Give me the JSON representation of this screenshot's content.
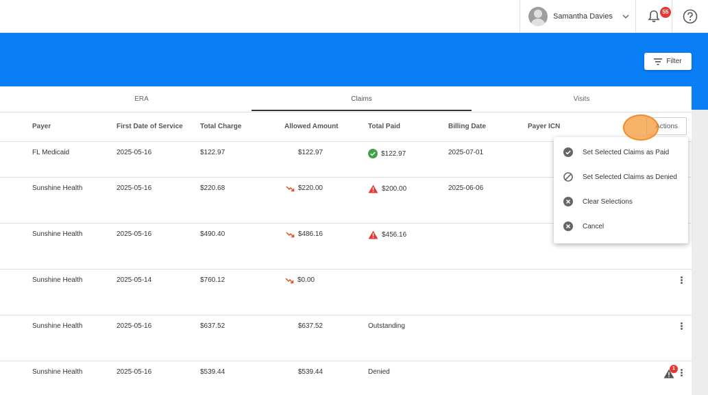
{
  "header": {
    "user_name": "Samantha Davies",
    "notification_count": "55"
  },
  "toolbar": {
    "filter_label": "Filter"
  },
  "tabs": [
    {
      "label": "ERA",
      "active": false
    },
    {
      "label": "Claims",
      "active": true
    },
    {
      "label": "Visits",
      "active": false
    }
  ],
  "table": {
    "columns": [
      "Payer",
      "First Date of Service",
      "Total Charge",
      "Allowed Amount",
      "Total Paid",
      "Billing Date",
      "Payer ICN"
    ],
    "actions_label": "Actions",
    "rows": [
      {
        "payer": "FL Medicaid",
        "first_date": "2025-05-16",
        "total_charge": "$122.97",
        "allowed": "$122.97",
        "allowed_down": false,
        "paid": "$122.97",
        "paid_status": "ok",
        "billing_date": "2025-07-01"
      },
      {
        "payer": "Sunshine Health",
        "first_date": "2025-05-16",
        "total_charge": "$220.68",
        "allowed": "$220.00",
        "allowed_down": true,
        "paid": "$200.00",
        "paid_status": "warn",
        "billing_date": "2025-06-06"
      },
      {
        "payer": "Sunshine Health",
        "first_date": "2025-05-16",
        "total_charge": "$490.40",
        "allowed": "$486.16",
        "allowed_down": true,
        "paid": "$456.16",
        "paid_status": "warn",
        "billing_date": ""
      },
      {
        "payer": "Sunshine Health",
        "first_date": "2025-05-14",
        "total_charge": "$760.12",
        "allowed": "$0.00",
        "allowed_down": true,
        "paid": "",
        "paid_status": "none",
        "billing_date": ""
      },
      {
        "payer": "Sunshine Health",
        "first_date": "2025-05-16",
        "total_charge": "$637.52",
        "allowed": "$637.52",
        "allowed_down": false,
        "paid": "Outstanding",
        "paid_status": "text",
        "billing_date": ""
      },
      {
        "payer": "Sunshine Health",
        "first_date": "2025-05-16",
        "total_charge": "$539.44",
        "allowed": "$539.44",
        "allowed_down": false,
        "paid": "Denied",
        "paid_status": "text",
        "billing_date": "",
        "alert_count": "1"
      }
    ]
  },
  "actions_menu": [
    {
      "label": "Set Selected Claims as Paid",
      "icon": "check-circle-icon"
    },
    {
      "label": "Set Selected Claims as Denied",
      "icon": "block-icon"
    },
    {
      "label": "Clear Selections",
      "icon": "cancel-circle-icon"
    },
    {
      "label": "Cancel",
      "icon": "cancel-circle-icon"
    }
  ],
  "colors": {
    "brand_blue": "#0a7ef5",
    "success": "#43a047",
    "danger": "#e53935",
    "trend_down": "#e64a19"
  }
}
